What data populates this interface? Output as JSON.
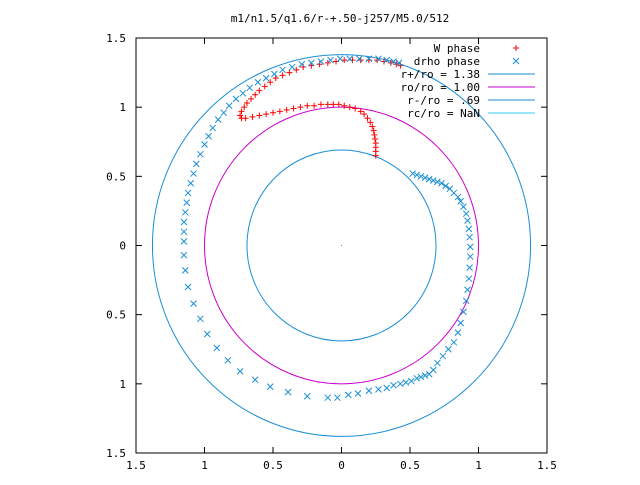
{
  "chart_data": {
    "type": "scatter",
    "title": "m1/n1.5/q1.6/r-+.50-j257/M5.0/512",
    "xlabel": "",
    "ylabel": "",
    "xlim": [
      -1.5,
      1.5
    ],
    "ylim": [
      -1.5,
      1.5
    ],
    "grid": false,
    "legend_position": "top-right",
    "x_ticks": [
      {
        "value": -1.5,
        "label": "1.5"
      },
      {
        "value": -1.0,
        "label": "1"
      },
      {
        "value": -0.5,
        "label": "0.5"
      },
      {
        "value": 0.0,
        "label": "0"
      },
      {
        "value": 0.5,
        "label": "0.5"
      },
      {
        "value": 1.0,
        "label": "1"
      },
      {
        "value": 1.5,
        "label": "1.5"
      }
    ],
    "y_ticks": [
      {
        "value": 1.5,
        "label": "1.5"
      },
      {
        "value": 1.0,
        "label": "1"
      },
      {
        "value": 0.5,
        "label": "0.5"
      },
      {
        "value": 0.0,
        "label": "0"
      },
      {
        "value": -0.5,
        "label": "0.5"
      },
      {
        "value": -1.0,
        "label": "1"
      },
      {
        "value": -1.5,
        "label": "1.5"
      }
    ],
    "series": [
      {
        "name": "W phase",
        "marker": "plus",
        "color": "#ff0000",
        "points": [
          [
            0.25,
            0.65
          ],
          [
            0.25,
            0.68
          ],
          [
            0.25,
            0.71
          ],
          [
            0.25,
            0.74
          ],
          [
            0.245,
            0.77
          ],
          [
            0.24,
            0.8
          ],
          [
            0.235,
            0.83
          ],
          [
            0.225,
            0.86
          ],
          [
            0.21,
            0.89
          ],
          [
            0.19,
            0.92
          ],
          [
            0.165,
            0.95
          ],
          [
            0.14,
            0.97
          ],
          [
            0.1,
            0.99
          ],
          [
            0.06,
            1.0
          ],
          [
            0.02,
            1.01
          ],
          [
            -0.02,
            1.02
          ],
          [
            -0.06,
            1.02
          ],
          [
            -0.1,
            1.02
          ],
          [
            -0.15,
            1.02
          ],
          [
            -0.2,
            1.01
          ],
          [
            -0.25,
            1.01
          ],
          [
            -0.3,
            1.0
          ],
          [
            -0.35,
            0.99
          ],
          [
            -0.4,
            0.98
          ],
          [
            -0.45,
            0.97
          ],
          [
            -0.5,
            0.96
          ],
          [
            -0.55,
            0.95
          ],
          [
            -0.6,
            0.94
          ],
          [
            -0.65,
            0.93
          ],
          [
            -0.7,
            0.92
          ],
          [
            -0.73,
            0.92
          ],
          [
            -0.74,
            0.94
          ],
          [
            -0.73,
            0.97
          ],
          [
            -0.71,
            1.0
          ],
          [
            -0.69,
            1.03
          ],
          [
            -0.66,
            1.06
          ],
          [
            -0.63,
            1.09
          ],
          [
            -0.6,
            1.12
          ],
          [
            -0.56,
            1.15
          ],
          [
            -0.52,
            1.18
          ],
          [
            -0.48,
            1.21
          ],
          [
            -0.43,
            1.23
          ],
          [
            -0.38,
            1.25
          ],
          [
            -0.33,
            1.27
          ],
          [
            -0.28,
            1.29
          ],
          [
            -0.22,
            1.3
          ],
          [
            -0.16,
            1.31
          ],
          [
            -0.1,
            1.32
          ],
          [
            -0.04,
            1.33
          ],
          [
            0.02,
            1.34
          ],
          [
            0.08,
            1.34
          ],
          [
            0.14,
            1.34
          ],
          [
            0.2,
            1.34
          ],
          [
            0.26,
            1.34
          ],
          [
            0.31,
            1.33
          ],
          [
            0.36,
            1.32
          ],
          [
            0.4,
            1.31
          ],
          [
            0.43,
            1.3
          ]
        ]
      },
      {
        "name": "drho phase",
        "marker": "cross",
        "color": "#1a8fd6",
        "points": [
          [
            -0.1,
            -1.1
          ],
          [
            -0.03,
            -1.1
          ],
          [
            0.05,
            -1.08
          ],
          [
            0.12,
            -1.07
          ],
          [
            0.2,
            -1.05
          ],
          [
            0.27,
            -1.04
          ],
          [
            0.33,
            -1.03
          ],
          [
            0.38,
            -1.01
          ],
          [
            0.43,
            -1.0
          ],
          [
            0.47,
            -0.99
          ],
          [
            0.51,
            -0.98
          ],
          [
            0.55,
            -0.96
          ],
          [
            0.58,
            -0.95
          ],
          [
            0.61,
            -0.94
          ],
          [
            0.64,
            -0.93
          ],
          [
            0.67,
            -0.9
          ],
          [
            0.7,
            -0.85
          ],
          [
            0.74,
            -0.8
          ],
          [
            0.78,
            -0.75
          ],
          [
            0.82,
            -0.7
          ],
          [
            0.85,
            -0.63
          ],
          [
            0.87,
            -0.56
          ],
          [
            0.89,
            -0.48
          ],
          [
            0.91,
            -0.4
          ],
          [
            0.92,
            -0.32
          ],
          [
            0.93,
            -0.24
          ],
          [
            0.935,
            -0.16
          ],
          [
            0.94,
            -0.08
          ],
          [
            0.94,
            -0.01
          ],
          [
            0.935,
            0.06
          ],
          [
            0.93,
            0.12
          ],
          [
            0.92,
            0.18
          ],
          [
            0.91,
            0.23
          ],
          [
            0.89,
            0.28
          ],
          [
            0.87,
            0.32
          ],
          [
            0.85,
            0.35
          ],
          [
            0.82,
            0.38
          ],
          [
            0.79,
            0.41
          ],
          [
            0.76,
            0.43
          ],
          [
            0.73,
            0.45
          ],
          [
            0.7,
            0.46
          ],
          [
            0.67,
            0.47
          ],
          [
            0.64,
            0.48
          ],
          [
            0.61,
            0.49
          ],
          [
            0.58,
            0.5
          ],
          [
            0.55,
            0.51
          ],
          [
            0.52,
            0.52
          ],
          [
            -0.25,
            -1.09
          ],
          [
            -0.39,
            -1.06
          ],
          [
            -0.52,
            -1.02
          ],
          [
            -0.63,
            -0.97
          ],
          [
            -0.74,
            -0.91
          ],
          [
            -0.83,
            -0.83
          ],
          [
            -0.91,
            -0.74
          ],
          [
            -0.98,
            -0.64
          ],
          [
            -1.03,
            -0.53
          ],
          [
            -1.08,
            -0.42
          ],
          [
            -1.12,
            -0.3
          ],
          [
            -1.14,
            -0.18
          ],
          [
            -1.15,
            -0.07
          ],
          [
            -1.15,
            0.03
          ],
          [
            -1.15,
            0.1
          ],
          [
            -1.15,
            0.17
          ],
          [
            -1.14,
            0.24
          ],
          [
            -1.13,
            0.31
          ],
          [
            -1.12,
            0.38
          ],
          [
            -1.1,
            0.45
          ],
          [
            -1.08,
            0.52
          ],
          [
            -1.06,
            0.59
          ],
          [
            -1.03,
            0.66
          ],
          [
            -1.0,
            0.73
          ],
          [
            -0.97,
            0.79
          ],
          [
            -0.94,
            0.85
          ],
          [
            -0.9,
            0.91
          ],
          [
            -0.86,
            0.96
          ],
          [
            -0.82,
            1.01
          ],
          [
            -0.77,
            1.06
          ],
          [
            -0.72,
            1.1
          ],
          [
            -0.67,
            1.14
          ],
          [
            -0.61,
            1.18
          ],
          [
            -0.55,
            1.21
          ],
          [
            -0.49,
            1.24
          ],
          [
            -0.43,
            1.27
          ],
          [
            -0.36,
            1.29
          ],
          [
            -0.29,
            1.31
          ],
          [
            -0.22,
            1.32
          ],
          [
            -0.15,
            1.33
          ],
          [
            -0.08,
            1.34
          ],
          [
            -0.01,
            1.35
          ],
          [
            0.06,
            1.35
          ],
          [
            0.13,
            1.35
          ],
          [
            0.2,
            1.35
          ],
          [
            0.27,
            1.35
          ],
          [
            0.33,
            1.34
          ],
          [
            0.38,
            1.33
          ],
          [
            0.42,
            1.32
          ]
        ]
      },
      {
        "name": "r+/ro = 1.38",
        "type": "circle",
        "radius": 1.38,
        "color": "#1a8fd6"
      },
      {
        "name": "ro/ro = 1.00",
        "type": "circle",
        "radius": 1.0,
        "color": "#cc00cc"
      },
      {
        "name": "r-/ro = .69",
        "type": "circle",
        "radius": 0.69,
        "color": "#1a8fd6"
      },
      {
        "name": "rc/ro = NaN",
        "type": "circle",
        "radius": null,
        "color": "#33ccee"
      }
    ]
  }
}
